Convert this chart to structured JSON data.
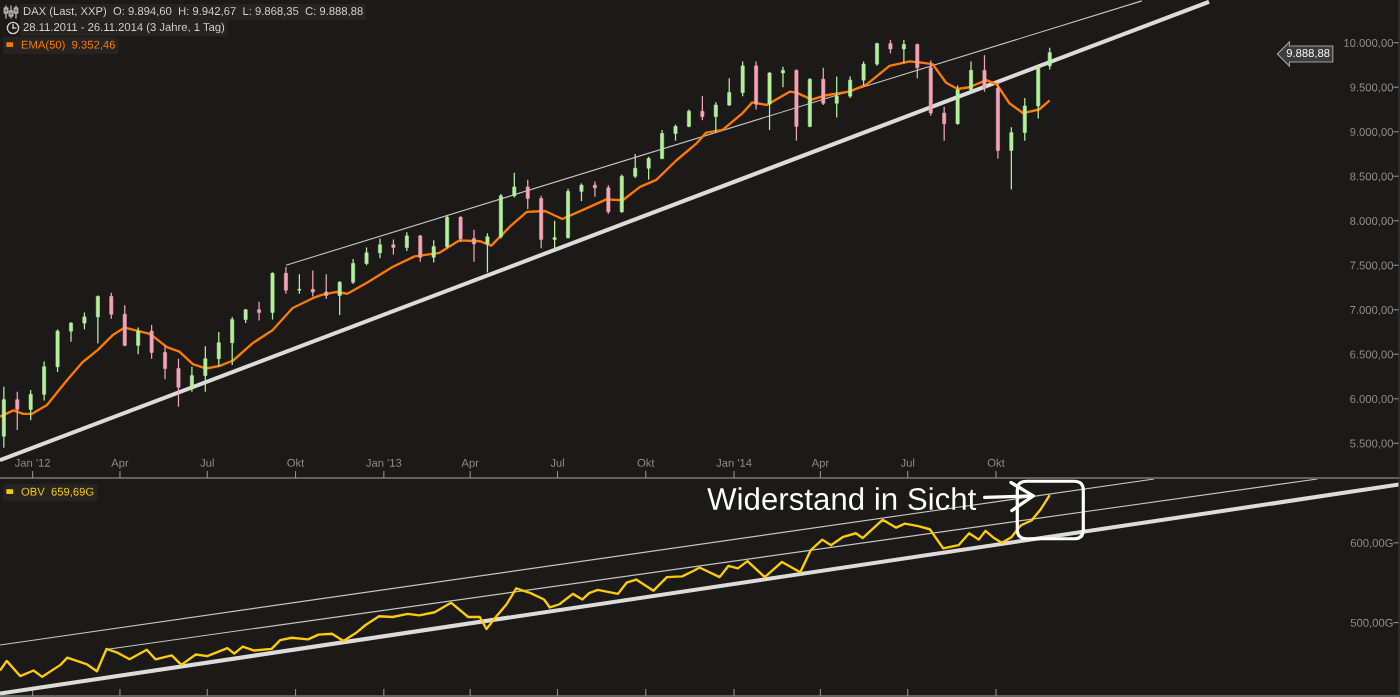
{
  "chart_data": [
    {
      "type": "candlestick",
      "title": "DAX (Last, XXP)  O: 9.894,60  H: 9.942,67  L: 9.868,35  C: 9.888,88",
      "subtitle": "28.11.2011 - 26.11.2014 (3 Jahre, 1 Tag)",
      "x": [
        "2011-12-02",
        "2011-12-16",
        "2011-12-30",
        "2012-01-13",
        "2012-01-27",
        "2012-02-10",
        "2012-02-24",
        "2012-03-09",
        "2012-03-23",
        "2012-04-06",
        "2012-04-20",
        "2012-05-04",
        "2012-05-18",
        "2012-06-01",
        "2012-06-15",
        "2012-06-29",
        "2012-07-13",
        "2012-07-27",
        "2012-08-10",
        "2012-08-24",
        "2012-09-07",
        "2012-09-21",
        "2012-10-05",
        "2012-10-19",
        "2012-11-02",
        "2012-11-16",
        "2012-11-30",
        "2012-12-14",
        "2012-12-28",
        "2013-01-11",
        "2013-01-25",
        "2013-02-08",
        "2013-02-22",
        "2013-03-08",
        "2013-03-22",
        "2013-04-05",
        "2013-04-19",
        "2013-05-03",
        "2013-05-17",
        "2013-05-31",
        "2013-06-14",
        "2013-06-28",
        "2013-07-12",
        "2013-07-26",
        "2013-08-09",
        "2013-08-23",
        "2013-09-06",
        "2013-09-20",
        "2013-10-04",
        "2013-10-18",
        "2013-11-01",
        "2013-11-15",
        "2013-11-29",
        "2013-12-13",
        "2013-12-27",
        "2014-01-10",
        "2014-01-24",
        "2014-02-07",
        "2014-02-21",
        "2014-03-07",
        "2014-03-21",
        "2014-04-04",
        "2014-04-18",
        "2014-05-02",
        "2014-05-16",
        "2014-05-30",
        "2014-06-13",
        "2014-06-27",
        "2014-07-11",
        "2014-07-25",
        "2014-08-08",
        "2014-08-22",
        "2014-09-05",
        "2014-09-19",
        "2014-10-03",
        "2014-10-17",
        "2014-10-31",
        "2014-11-14",
        "2014-11-26"
      ],
      "ohlc": [
        [
          5580,
          6135,
          5450,
          5990
        ],
        [
          5990,
          6080,
          5650,
          5880
        ],
        [
          5880,
          6100,
          5760,
          6050
        ],
        [
          6050,
          6420,
          5980,
          6360
        ],
        [
          6360,
          6780,
          6300,
          6760
        ],
        [
          6760,
          6860,
          6640,
          6850
        ],
        [
          6850,
          6970,
          6780,
          6920
        ],
        [
          6920,
          7160,
          6620,
          7150
        ],
        [
          7150,
          7190,
          6900,
          6950
        ],
        [
          6950,
          7050,
          6590,
          6600
        ],
        [
          6600,
          6800,
          6500,
          6760
        ],
        [
          6760,
          6830,
          6450,
          6520
        ],
        [
          6520,
          6600,
          6220,
          6340
        ],
        [
          6340,
          6450,
          5910,
          6130
        ],
        [
          6130,
          6360,
          6080,
          6260
        ],
        [
          6260,
          6590,
          6080,
          6450
        ],
        [
          6450,
          6750,
          6360,
          6630
        ],
        [
          6630,
          6920,
          6380,
          6890
        ],
        [
          6890,
          7010,
          6850,
          7000
        ],
        [
          7000,
          7090,
          6880,
          6970
        ],
        [
          6970,
          7420,
          6890,
          7410
        ],
        [
          7410,
          7480,
          7180,
          7220
        ],
        [
          7220,
          7400,
          7180,
          7230
        ],
        [
          7230,
          7440,
          7150,
          7200
        ],
        [
          7200,
          7400,
          7120,
          7160
        ],
        [
          7160,
          7320,
          6940,
          7310
        ],
        [
          7310,
          7570,
          7290,
          7520
        ],
        [
          7520,
          7700,
          7500,
          7640
        ],
        [
          7640,
          7800,
          7580,
          7730
        ],
        [
          7730,
          7790,
          7620,
          7700
        ],
        [
          7700,
          7870,
          7660,
          7830
        ],
        [
          7830,
          7840,
          7540,
          7590
        ],
        [
          7590,
          7780,
          7530,
          7710
        ],
        [
          7710,
          8060,
          7690,
          8040
        ],
        [
          8040,
          8050,
          7760,
          7800
        ],
        [
          7800,
          7900,
          7540,
          7740
        ],
        [
          7740,
          7860,
          7420,
          7820
        ],
        [
          7820,
          8300,
          7800,
          8280
        ],
        [
          8280,
          8540,
          8260,
          8380
        ],
        [
          8380,
          8460,
          8130,
          8250
        ],
        [
          8250,
          8280,
          7690,
          7790
        ],
        [
          7790,
          8000,
          7670,
          7810
        ],
        [
          7810,
          8360,
          7800,
          8330
        ],
        [
          8330,
          8420,
          8220,
          8400
        ],
        [
          8400,
          8440,
          8270,
          8370
        ],
        [
          8370,
          8400,
          8080,
          8100
        ],
        [
          8100,
          8520,
          8090,
          8500
        ],
        [
          8500,
          8750,
          8480,
          8590
        ],
        [
          8590,
          8720,
          8460,
          8700
        ],
        [
          8700,
          9020,
          8690,
          8980
        ],
        [
          8980,
          9080,
          8900,
          9060
        ],
        [
          9060,
          9250,
          9050,
          9230
        ],
        [
          9230,
          9400,
          9130,
          9170
        ],
        [
          9170,
          9330,
          8990,
          9300
        ],
        [
          9300,
          9600,
          9290,
          9440
        ],
        [
          9440,
          9790,
          9400,
          9740
        ],
        [
          9740,
          9790,
          9250,
          9310
        ],
        [
          9310,
          9670,
          9020,
          9660
        ],
        [
          9660,
          9730,
          9500,
          9690
        ],
        [
          9690,
          9700,
          8900,
          9060
        ],
        [
          9060,
          9600,
          9050,
          9590
        ],
        [
          9590,
          9720,
          9300,
          9320
        ],
        [
          9320,
          9620,
          9160,
          9400
        ],
        [
          9400,
          9620,
          9380,
          9580
        ],
        [
          9580,
          9790,
          9520,
          9760
        ],
        [
          9760,
          10000,
          9740,
          9990
        ],
        [
          9990,
          10030,
          9880,
          9930
        ],
        [
          9930,
          10030,
          9770,
          9980
        ],
        [
          9980,
          9990,
          9600,
          9720
        ],
        [
          9720,
          9800,
          9180,
          9210
        ],
        [
          9210,
          9280,
          8900,
          9090
        ],
        [
          9090,
          9520,
          9080,
          9470
        ],
        [
          9470,
          9790,
          9440,
          9690
        ],
        [
          9690,
          9860,
          9450,
          9490
        ],
        [
          9490,
          9570,
          8700,
          8790
        ],
        [
          8790,
          9050,
          8350,
          8990
        ],
        [
          8990,
          9380,
          8900,
          9290
        ],
        [
          9290,
          9740,
          9150,
          9730
        ],
        [
          9740,
          9942.67,
          9700,
          9888.88
        ]
      ],
      "colors": [
        "#b4f09c",
        "#f5a3b5",
        "#b4f09c",
        "#b4f09c",
        "#b4f09c",
        "#b4f09c",
        "#b4f09c",
        "#b4f09c",
        "#f5a3b5",
        "#f5a3b5",
        "#b4f09c",
        "#f5a3b5",
        "#f5a3b5",
        "#f5a3b5",
        "#b4f09c",
        "#b4f09c",
        "#b4f09c",
        "#b4f09c",
        "#b4f09c",
        "#f5a3b5",
        "#b4f09c",
        "#f5a3b5",
        "#b4f09c",
        "#f5a3b5",
        "#f5a3b5",
        "#b4f09c",
        "#b4f09c",
        "#b4f09c",
        "#b4f09c",
        "#f5a3b5",
        "#b4f09c",
        "#f5a3b5",
        "#b4f09c",
        "#b4f09c",
        "#f5a3b5",
        "#f5a3b5",
        "#b4f09c",
        "#b4f09c",
        "#b4f09c",
        "#f5a3b5",
        "#f5a3b5",
        "#b4f09c",
        "#b4f09c",
        "#b4f09c",
        "#f5a3b5",
        "#f5a3b5",
        "#b4f09c",
        "#b4f09c",
        "#b4f09c",
        "#b4f09c",
        "#b4f09c",
        "#b4f09c",
        "#f5a3b5",
        "#b4f09c",
        "#b4f09c",
        "#b4f09c",
        "#f5a3b5",
        "#b4f09c",
        "#b4f09c",
        "#f5a3b5",
        "#b4f09c",
        "#f5a3b5",
        "#b4f09c",
        "#b4f09c",
        "#b4f09c",
        "#b4f09c",
        "#f5a3b5",
        "#b4f09c",
        "#f5a3b5",
        "#f5a3b5",
        "#f5a3b5",
        "#b4f09c",
        "#b4f09c",
        "#f5a3b5",
        "#f5a3b5",
        "#b4f09c",
        "#b4f09c",
        "#b4f09c",
        "#b4f09c"
      ],
      "series": [
        {
          "name": "EMA(50)  9.352,46",
          "type": "line",
          "color": "#ff7a00",
          "x": [
            "2011-11-28",
            "2011-12-12",
            "2011-12-22",
            "2011-12-31",
            "2012-01-16",
            "2012-02-06",
            "2012-02-22",
            "2012-03-09",
            "2012-03-25",
            "2012-04-06",
            "2012-05-02",
            "2012-05-20",
            "2012-06-02",
            "2012-06-16",
            "2012-06-30",
            "2012-07-14",
            "2012-07-28",
            "2012-08-18",
            "2012-09-07",
            "2012-09-28",
            "2012-10-19",
            "2012-10-29",
            "2012-11-13",
            "2012-11-24",
            "2012-12-14",
            "2013-01-10",
            "2013-02-02",
            "2013-02-28",
            "2013-03-21",
            "2013-04-11",
            "2013-04-23",
            "2013-05-12",
            "2013-05-30",
            "2013-06-18",
            "2013-07-06",
            "2013-07-27",
            "2013-08-21",
            "2013-09-07",
            "2013-09-25",
            "2013-10-12",
            "2013-11-02",
            "2013-11-23",
            "2013-12-03",
            "2013-12-20",
            "2014-01-10",
            "2014-01-20",
            "2014-02-04",
            "2014-02-28",
            "2014-03-07",
            "2014-03-23",
            "2014-04-07",
            "2014-05-01",
            "2014-05-19",
            "2014-06-12",
            "2014-07-03",
            "2014-07-13",
            "2014-07-27",
            "2014-08-10",
            "2014-08-22",
            "2014-09-03",
            "2014-09-21",
            "2014-10-02",
            "2014-10-15",
            "2014-10-29",
            "2014-11-15",
            "2014-11-26"
          ],
          "values": [
            5800,
            5870,
            5830,
            5830,
            5930,
            6210,
            6410,
            6550,
            6720,
            6800,
            6730,
            6580,
            6530,
            6390,
            6340,
            6370,
            6430,
            6630,
            6770,
            7020,
            7130,
            7170,
            7200,
            7180,
            7300,
            7480,
            7600,
            7640,
            7780,
            7770,
            7720,
            7930,
            8100,
            8110,
            8020,
            8120,
            8240,
            8230,
            8380,
            8460,
            8680,
            8870,
            8990,
            9020,
            9210,
            9330,
            9300,
            9450,
            9440,
            9360,
            9410,
            9450,
            9530,
            9740,
            9790,
            9780,
            9760,
            9550,
            9480,
            9500,
            9580,
            9530,
            9320,
            9210,
            9250,
            9352.46
          ]
        },
        {
          "type": "line",
          "color": "#dcdcdc",
          "x": [
            "2011-11-28",
            "2015-05-11"
          ],
          "values": [
            5310,
            10460
          ]
        },
        {
          "type": "line",
          "color": "#c4c4c4",
          "x": [
            "2012-09-21",
            "2015-03-02"
          ],
          "values": [
            7500,
            10470
          ]
        }
      ],
      "xlim": [
        "2011-11-28",
        "2015-11-25"
      ],
      "xticks": [
        {
          "value": "2012-01-01",
          "label": "Jan '12"
        },
        {
          "value": "2012-04-01",
          "label": "Apr"
        },
        {
          "value": "2012-07-01",
          "label": "Jul"
        },
        {
          "value": "2012-10-01",
          "label": "Okt"
        },
        {
          "value": "2013-01-01",
          "label": "Jan '13"
        },
        {
          "value": "2013-04-01",
          "label": "Apr"
        },
        {
          "value": "2013-07-01",
          "label": "Jul"
        },
        {
          "value": "2013-10-01",
          "label": "Okt"
        },
        {
          "value": "2014-01-01",
          "label": "Jan '14"
        },
        {
          "value": "2014-04-01",
          "label": "Apr"
        },
        {
          "value": "2014-07-01",
          "label": "Jul"
        },
        {
          "value": "2014-10-01",
          "label": "Okt"
        }
      ],
      "ylim": [
        5110,
        10480
      ],
      "yticks": [
        {
          "value": 5500,
          "label": "5.500,00"
        },
        {
          "value": 6000,
          "label": "6.000,00"
        },
        {
          "value": 6500,
          "label": "6.500,00"
        },
        {
          "value": 7000,
          "label": "7.000,00"
        },
        {
          "value": 7500,
          "label": "7.500,00"
        },
        {
          "value": 8000,
          "label": "8.000,00"
        },
        {
          "value": 8500,
          "label": "8.500,00"
        },
        {
          "value": 9000,
          "label": "9.000,00"
        },
        {
          "value": 9500,
          "label": "9.500,00"
        },
        {
          "value": 10000,
          "label": "10.000,00"
        }
      ],
      "grid": false,
      "legend": "top left",
      "annotations": [
        "9.888,88"
      ]
    },
    {
      "type": "line",
      "series": [
        {
          "name": "OBV  659,69G",
          "color": "#ffcc00",
          "x": [
            "2011-11-28",
            "2011-12-05",
            "2011-12-19",
            "2012-01-02",
            "2012-01-11",
            "2012-01-30",
            "2012-02-06",
            "2012-02-26",
            "2012-03-08",
            "2012-03-18",
            "2012-03-30",
            "2012-04-11",
            "2012-04-29",
            "2012-05-08",
            "2012-05-25",
            "2012-06-04",
            "2012-06-19",
            "2012-07-01",
            "2012-07-22",
            "2012-07-29",
            "2012-08-07",
            "2012-08-19",
            "2012-09-06",
            "2012-09-15",
            "2012-09-27",
            "2012-10-14",
            "2012-10-25",
            "2012-11-08",
            "2012-11-20",
            "2012-12-04",
            "2012-12-13",
            "2012-12-27",
            "2013-01-10",
            "2013-01-26",
            "2013-02-07",
            "2013-02-23",
            "2013-03-12",
            "2013-03-30",
            "2013-04-11",
            "2013-04-18",
            "2013-04-29",
            "2013-05-09",
            "2013-05-19",
            "2013-06-03",
            "2013-06-17",
            "2013-06-23",
            "2013-07-03",
            "2013-07-17",
            "2013-07-27",
            "2013-08-03",
            "2013-08-12",
            "2013-09-02",
            "2013-09-11",
            "2013-09-21",
            "2013-10-09",
            "2013-10-23",
            "2013-11-08",
            "2013-11-20",
            "2013-11-26",
            "2013-12-17",
            "2013-12-26",
            "2014-01-05",
            "2014-01-15",
            "2014-02-02",
            "2014-02-20",
            "2014-03-11",
            "2014-03-22",
            "2014-04-03",
            "2014-04-12",
            "2014-04-24",
            "2014-05-08",
            "2014-05-15",
            "2014-06-05",
            "2014-06-19",
            "2014-06-28",
            "2014-07-12",
            "2014-07-24",
            "2014-08-07",
            "2014-08-23",
            "2014-09-03",
            "2014-09-13",
            "2014-09-20",
            "2014-09-29",
            "2014-10-07",
            "2014-10-17",
            "2014-10-27",
            "2014-11-07",
            "2014-11-16",
            "2014-11-26"
          ],
          "values": [
            440,
            452,
            433,
            440,
            432,
            447,
            456,
            448,
            439,
            467,
            462,
            454,
            466,
            454,
            459,
            447,
            460,
            458,
            468,
            461,
            470,
            465,
            467,
            478,
            481,
            479,
            485,
            486,
            477,
            488,
            497,
            508,
            507,
            511,
            509,
            513,
            525,
            507,
            507,
            492,
            509,
            523,
            543,
            537,
            529,
            519,
            523,
            536,
            529,
            537,
            541,
            536,
            550,
            554,
            540,
            557,
            558,
            565,
            569,
            557,
            571,
            568,
            577,
            557,
            576,
            563,
            591,
            604,
            597,
            607,
            612,
            606,
            629,
            619,
            624,
            621,
            617,
            593,
            597,
            612,
            604,
            615,
            606,
            600,
            607,
            622,
            628,
            641,
            659.69
          ]
        },
        {
          "color": "#dcdcdc",
          "x": [
            "2011-11-28",
            "2015-11-25"
          ],
          "values": [
            411,
            673
          ]
        },
        {
          "color": "#c4c4c4",
          "x": [
            "2012-03-21",
            "2015-09-01"
          ],
          "values": [
            467,
            680
          ]
        },
        {
          "color": "#c4c4c4",
          "x": [
            "2011-11-28",
            "2015-03-15"
          ],
          "values": [
            472,
            680
          ]
        }
      ],
      "xlim": [
        "2011-11-28",
        "2015-11-25"
      ],
      "xticks": [
        {
          "value": "2012-01-01",
          "label": null
        },
        {
          "value": "2012-04-01",
          "label": null
        },
        {
          "value": "2012-07-01",
          "label": null
        },
        {
          "value": "2012-10-01",
          "label": null
        },
        {
          "value": "2013-01-01",
          "label": null
        },
        {
          "value": "2013-04-01",
          "label": null
        },
        {
          "value": "2013-07-01",
          "label": null
        },
        {
          "value": "2013-10-01",
          "label": null
        },
        {
          "value": "2014-01-01",
          "label": null
        },
        {
          "value": "2014-04-01",
          "label": null
        },
        {
          "value": "2014-07-01",
          "label": null
        },
        {
          "value": "2014-10-01",
          "label": null
        }
      ],
      "ylim": [
        408,
        680
      ],
      "yticks": [
        {
          "value": 500,
          "label": "500,00G"
        },
        {
          "value": 600,
          "label": "600,00G"
        }
      ],
      "tick_labels": "y",
      "legend": "top left",
      "annotations": [
        {
          "text": "Widerstand in Sicht",
          "x": "2014-11-12",
          "y": 659
        }
      ]
    }
  ]
}
